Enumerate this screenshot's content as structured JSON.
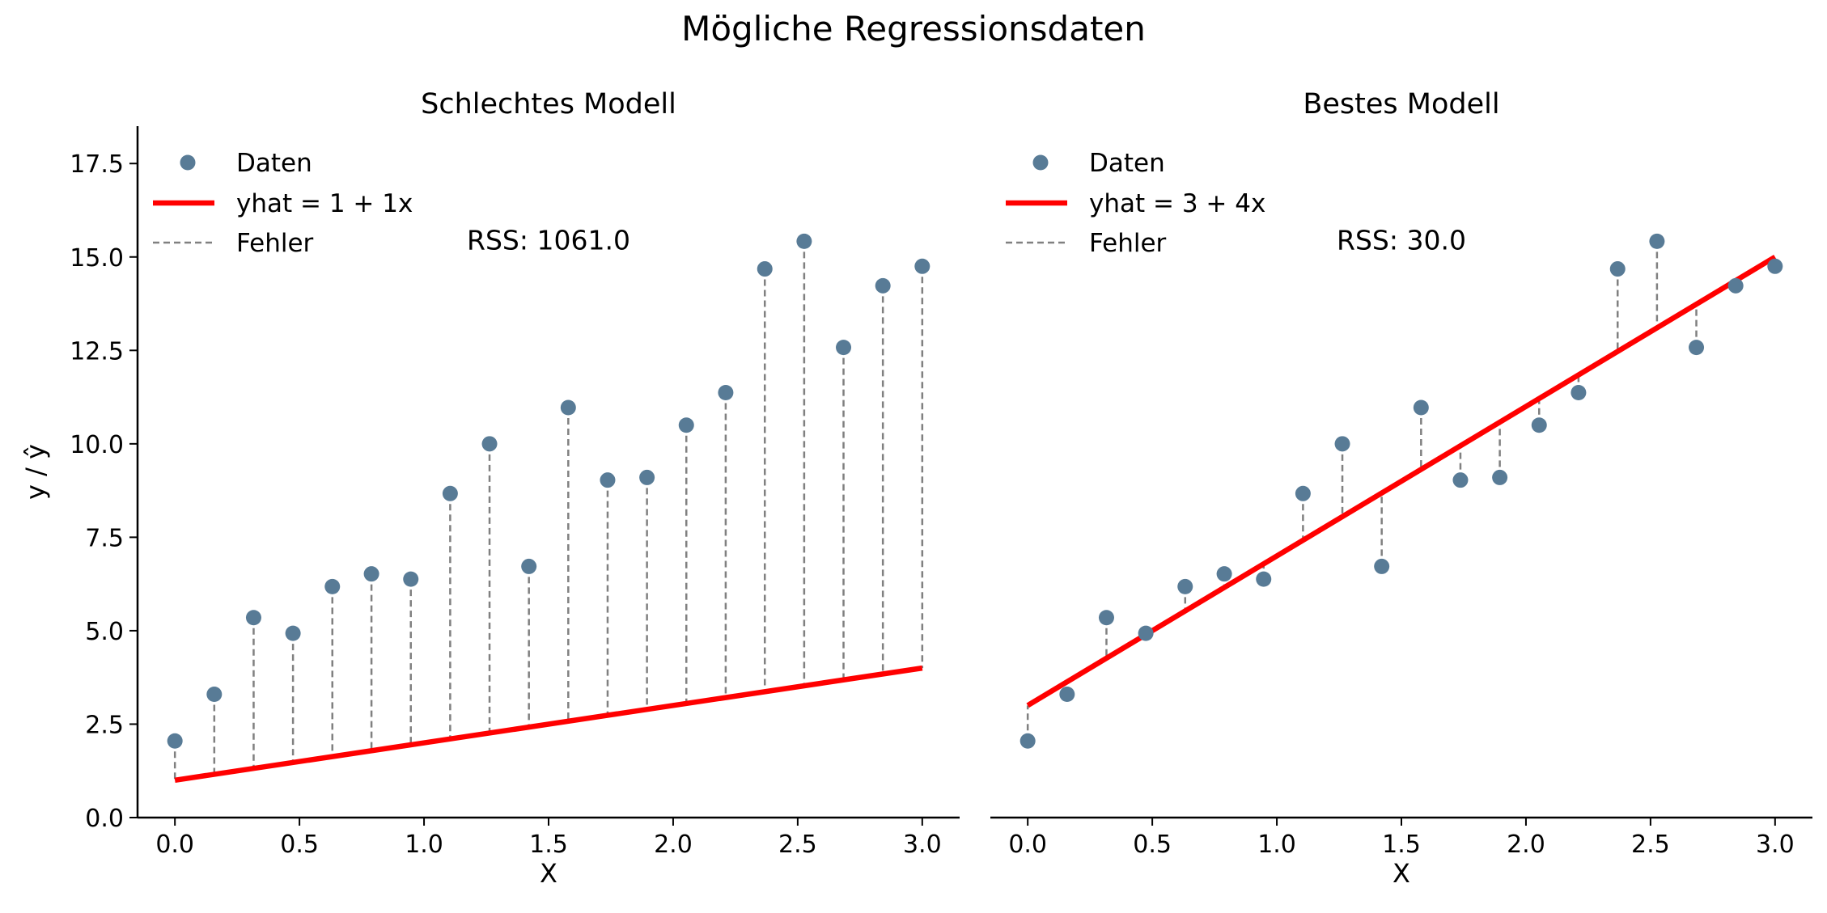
{
  "figure": {
    "title": "Mögliche Regressionsdaten"
  },
  "colors": {
    "points": "#587b96",
    "fit_line": "#ff0000",
    "error_lines": "#808080",
    "axes": "#000000"
  },
  "chart_data": [
    {
      "type": "scatter",
      "title": "Schlechtes Modell",
      "xlabel": "X",
      "ylabel": "y / ŷ",
      "xlim": [
        -0.15,
        3.15
      ],
      "ylim": [
        0,
        18.5
      ],
      "xticks": [
        0.0,
        0.5,
        1.0,
        1.5,
        2.0,
        2.5,
        3.0
      ],
      "xtick_labels": [
        "0.0",
        "0.5",
        "1.0",
        "1.5",
        "2.0",
        "2.5",
        "3.0"
      ],
      "yticks": [
        0.0,
        2.5,
        5.0,
        7.5,
        10.0,
        12.5,
        15.0,
        17.5
      ],
      "ytick_labels": [
        "0.0",
        "2.5",
        "5.0",
        "7.5",
        "10.0",
        "12.5",
        "15.0",
        "17.5"
      ],
      "legend": {
        "placement": "upper-left",
        "entries": [
          "Daten",
          "yhat = 1 + 1x",
          "Fehler"
        ]
      },
      "fit": {
        "intercept": 1,
        "slope": 1
      },
      "annotation": "RSS: 1061.0",
      "annotation_pos": {
        "x": 1.5,
        "y": 15.2
      },
      "series": [
        {
          "name": "Daten",
          "x": [
            0.0,
            0.158,
            0.316,
            0.474,
            0.632,
            0.789,
            0.947,
            1.105,
            1.263,
            1.421,
            1.579,
            1.737,
            1.895,
            2.053,
            2.211,
            2.368,
            2.526,
            2.684,
            2.842,
            3.0
          ],
          "y": [
            2.05,
            3.3,
            5.35,
            4.93,
            6.18,
            6.52,
            6.38,
            8.67,
            10.0,
            6.72,
            10.97,
            9.03,
            9.1,
            10.5,
            11.37,
            14.68,
            15.42,
            12.58,
            14.23,
            14.75
          ]
        }
      ]
    },
    {
      "type": "scatter",
      "title": "Bestes Modell",
      "xlabel": "X",
      "ylabel": "",
      "xlim": [
        -0.15,
        3.15
      ],
      "ylim": [
        0,
        18.5
      ],
      "xticks": [
        0.0,
        0.5,
        1.0,
        1.5,
        2.0,
        2.5,
        3.0
      ],
      "xtick_labels": [
        "0.0",
        "0.5",
        "1.0",
        "1.5",
        "2.0",
        "2.5",
        "3.0"
      ],
      "yticks": [],
      "ytick_labels": [],
      "legend": {
        "placement": "upper-left",
        "entries": [
          "Daten",
          "yhat = 3 + 4x",
          "Fehler"
        ]
      },
      "fit": {
        "intercept": 3,
        "slope": 4
      },
      "annotation": "RSS: 30.0",
      "annotation_pos": {
        "x": 1.5,
        "y": 15.2
      },
      "series": [
        {
          "name": "Daten",
          "x": [
            0.0,
            0.158,
            0.316,
            0.474,
            0.632,
            0.789,
            0.947,
            1.105,
            1.263,
            1.421,
            1.579,
            1.737,
            1.895,
            2.053,
            2.211,
            2.368,
            2.526,
            2.684,
            2.842,
            3.0
          ],
          "y": [
            2.05,
            3.3,
            5.35,
            4.93,
            6.18,
            6.52,
            6.38,
            8.67,
            10.0,
            6.72,
            10.97,
            9.03,
            9.1,
            10.5,
            11.37,
            14.68,
            15.42,
            12.58,
            14.23,
            14.75
          ]
        }
      ]
    }
  ]
}
